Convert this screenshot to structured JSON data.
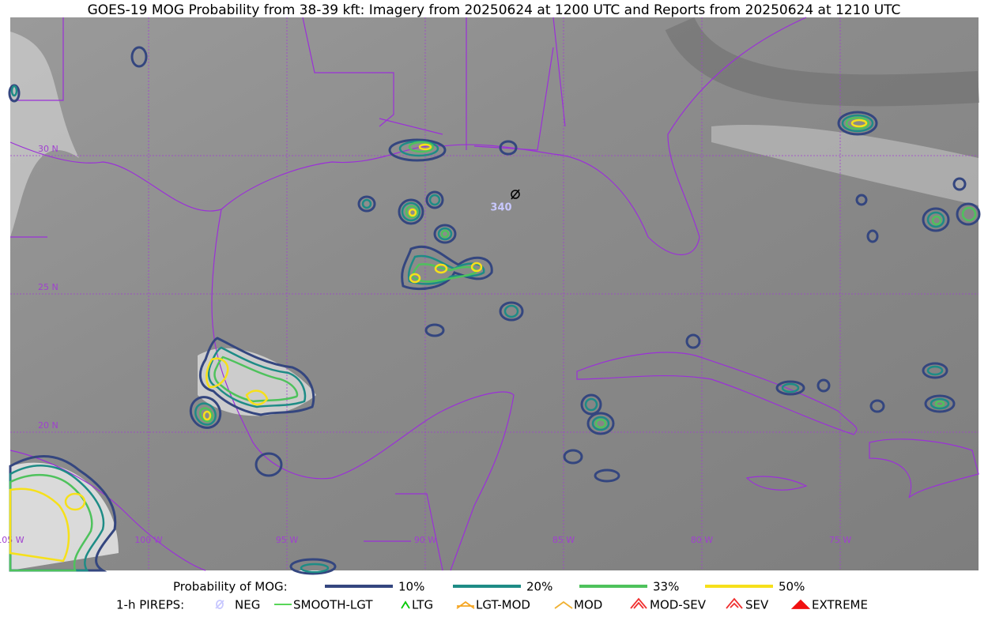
{
  "title": "GOES-19 MOG Probability from 38-39 kft: Imagery from 20250624 at 1200 UTC and Reports from 20250624 at 1210 UTC",
  "graticule": {
    "latitudes": [
      "30 N",
      "25 N",
      "20 N"
    ],
    "longitudes": [
      "105 W",
      "100 W",
      "95 W",
      "90 W",
      "85 W",
      "80 W",
      "75 W"
    ]
  },
  "reports": [
    {
      "label": "340"
    }
  ],
  "legend": {
    "probability": {
      "title": "Probability of MOG:",
      "items": [
        {
          "label": "10%",
          "color": "#34467f"
        },
        {
          "label": "20%",
          "color": "#1e8c86"
        },
        {
          "label": "33%",
          "color": "#4ec25c"
        },
        {
          "label": "50%",
          "color": "#f6e01a"
        }
      ]
    },
    "pireps": {
      "title": "1-h PIREPS:",
      "items": [
        {
          "label": "NEG",
          "color": "#c8c8ff"
        },
        {
          "label": "SMOOTH-LGT",
          "color": "#40d040"
        },
        {
          "label": "LTG",
          "color": "#00c800"
        },
        {
          "label": "LGT-MOD",
          "color": "#f5a623"
        },
        {
          "label": "MOD",
          "color": "#f0b030"
        },
        {
          "label": "MOD-SEV",
          "color": "#f03030"
        },
        {
          "label": "SEV",
          "color": "#f03030"
        },
        {
          "label": "EXTREME",
          "color": "#f01010"
        }
      ]
    }
  }
}
